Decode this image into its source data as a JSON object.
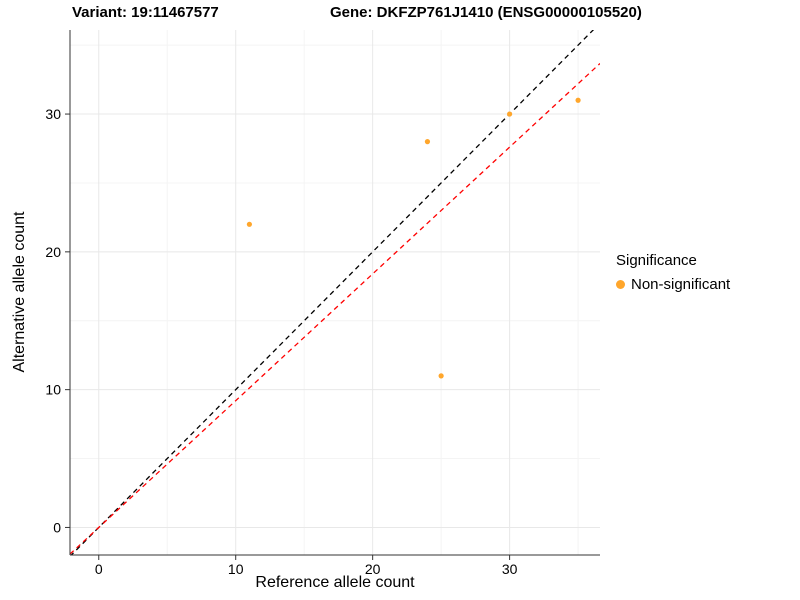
{
  "chart_data": {
    "type": "scatter",
    "title_left": "Variant: 19:11467577",
    "title_right": "Gene: DKFZP761J1410 (ENSG00000105520)",
    "xlabel": "Reference allele count",
    "ylabel": "Alternative allele count",
    "xlim": [
      -2.1,
      36.6
    ],
    "ylim": [
      -2.0,
      36.1
    ],
    "xticks": [
      0,
      10,
      20,
      30
    ],
    "yticks": [
      0,
      10,
      20,
      30
    ],
    "x_minor": [
      5,
      15,
      25,
      35
    ],
    "y_minor": [
      5,
      15,
      25,
      35
    ],
    "grid": true,
    "points": [
      {
        "x": 11,
        "y": 22
      },
      {
        "x": 24,
        "y": 28
      },
      {
        "x": 25,
        "y": 11
      },
      {
        "x": 30,
        "y": 30
      },
      {
        "x": 35,
        "y": 31
      }
    ],
    "point_color": "#FFA62B",
    "lines": [
      {
        "name": "identity",
        "slope": 1.0,
        "intercept": 0,
        "color": "#000000",
        "dash": "5 4"
      },
      {
        "name": "fit",
        "slope": 0.92,
        "intercept": 0,
        "color": "#FF0000",
        "dash": "5 4"
      }
    ],
    "legend": {
      "title": "Significance",
      "position": "right",
      "entries": [
        {
          "label": "Non-significant",
          "color": "#FFA62B"
        }
      ]
    },
    "colors": {
      "grid_major": "#e8e8e8",
      "grid_minor": "#f4f4f4",
      "axis": "#333333",
      "tick_text": "#000000"
    }
  }
}
